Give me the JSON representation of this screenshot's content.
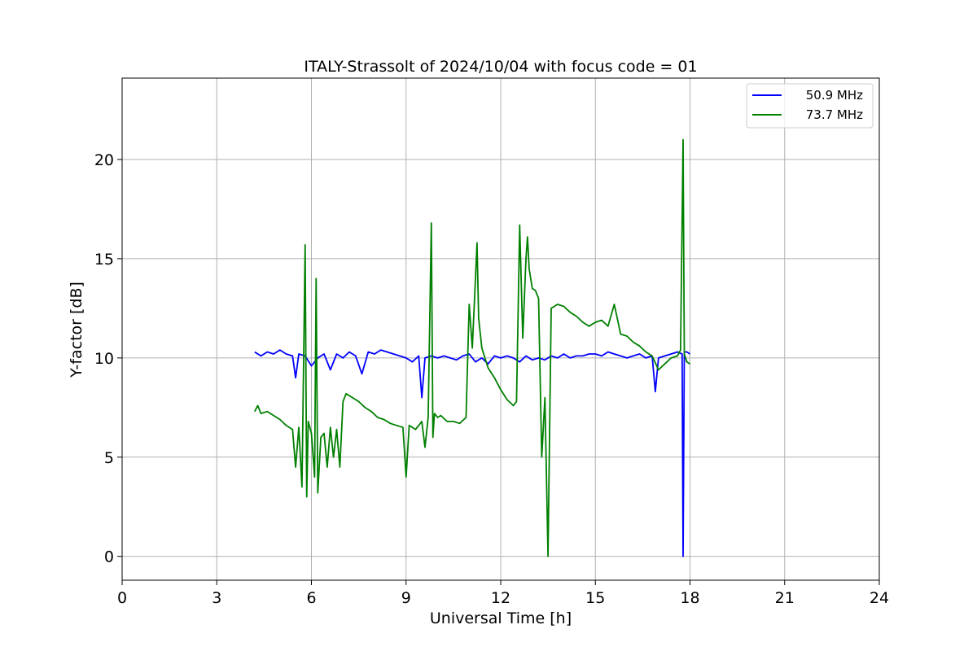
{
  "chart_data": {
    "type": "line",
    "title": "ITALY-Strassolt of 2024/10/04 with focus code = 01",
    "xlabel": "Universal Time [h]",
    "ylabel": "Y-factor [dB]",
    "xlim": [
      0,
      24
    ],
    "ylim": [
      -1.2,
      24.1
    ],
    "xticks": [
      0,
      3,
      6,
      9,
      12,
      15,
      18,
      21,
      24
    ],
    "yticks": [
      0,
      5,
      10,
      15,
      20
    ],
    "grid": true,
    "legend_position": "top-right",
    "colors": {
      "50.9 MHz": "#0000ff",
      "73.7 MHz": "#008000"
    },
    "series": [
      {
        "name": "50.9 MHz",
        "color": "#0000ff",
        "x": [
          4.2,
          4.4,
          4.6,
          4.8,
          5.0,
          5.2,
          5.4,
          5.5,
          5.6,
          5.8,
          6.0,
          6.2,
          6.4,
          6.6,
          6.8,
          7.0,
          7.2,
          7.4,
          7.6,
          7.8,
          8.0,
          8.2,
          8.4,
          8.6,
          8.8,
          9.0,
          9.2,
          9.4,
          9.5,
          9.6,
          9.8,
          10.0,
          10.2,
          10.4,
          10.6,
          10.8,
          11.0,
          11.2,
          11.4,
          11.6,
          11.8,
          12.0,
          12.2,
          12.4,
          12.6,
          12.8,
          13.0,
          13.2,
          13.4,
          13.6,
          13.8,
          14.0,
          14.2,
          14.4,
          14.6,
          14.8,
          15.0,
          15.2,
          15.4,
          15.6,
          15.8,
          16.0,
          16.2,
          16.4,
          16.6,
          16.8,
          16.9,
          17.0,
          17.2,
          17.4,
          17.6,
          17.75,
          17.78,
          17.82,
          17.9,
          18.0
        ],
        "y": [
          10.3,
          10.1,
          10.3,
          10.2,
          10.4,
          10.2,
          10.1,
          9.0,
          10.2,
          10.1,
          9.6,
          10.0,
          10.2,
          9.4,
          10.2,
          10.0,
          10.3,
          10.1,
          9.2,
          10.3,
          10.2,
          10.4,
          10.3,
          10.2,
          10.1,
          10.0,
          9.8,
          10.1,
          8.0,
          10.0,
          10.1,
          10.0,
          10.1,
          10.0,
          9.9,
          10.1,
          10.2,
          9.8,
          10.0,
          9.7,
          10.1,
          10.0,
          10.1,
          10.0,
          9.8,
          10.1,
          9.9,
          10.0,
          9.9,
          10.1,
          10.0,
          10.2,
          10.0,
          10.1,
          10.1,
          10.2,
          10.2,
          10.1,
          10.3,
          10.2,
          10.1,
          10.0,
          10.1,
          10.2,
          10.0,
          10.1,
          8.3,
          10.0,
          10.1,
          10.2,
          10.3,
          10.2,
          0.0,
          10.3,
          10.3,
          10.2
        ]
      },
      {
        "name": "73.7 MHz",
        "color": "#008000",
        "x": [
          4.2,
          4.3,
          4.4,
          4.6,
          4.8,
          5.0,
          5.2,
          5.4,
          5.5,
          5.6,
          5.7,
          5.8,
          5.85,
          5.9,
          6.0,
          6.1,
          6.15,
          6.2,
          6.3,
          6.4,
          6.5,
          6.6,
          6.7,
          6.8,
          6.9,
          7.0,
          7.1,
          7.3,
          7.5,
          7.7,
          7.9,
          8.1,
          8.3,
          8.5,
          8.7,
          8.9,
          9.0,
          9.1,
          9.3,
          9.5,
          9.6,
          9.7,
          9.8,
          9.85,
          9.9,
          10.0,
          10.1,
          10.3,
          10.5,
          10.7,
          10.9,
          11.0,
          11.1,
          11.2,
          11.25,
          11.3,
          11.4,
          11.6,
          11.8,
          12.0,
          12.2,
          12.4,
          12.5,
          12.6,
          12.7,
          12.8,
          12.85,
          12.9,
          13.0,
          13.1,
          13.2,
          13.3,
          13.4,
          13.5,
          13.6,
          13.8,
          14.0,
          14.2,
          14.4,
          14.6,
          14.8,
          15.0,
          15.2,
          15.4,
          15.6,
          15.8,
          16.0,
          16.2,
          16.4,
          16.6,
          16.8,
          17.0,
          17.2,
          17.4,
          17.6,
          17.7,
          17.78,
          17.82,
          17.9,
          18.0
        ],
        "y": [
          7.3,
          7.6,
          7.2,
          7.3,
          7.1,
          6.9,
          6.6,
          6.4,
          4.5,
          6.5,
          3.5,
          15.7,
          3.0,
          6.8,
          6.2,
          4.0,
          14.0,
          3.2,
          6.0,
          6.2,
          4.5,
          6.5,
          5.0,
          6.4,
          4.5,
          7.8,
          8.2,
          8.0,
          7.8,
          7.5,
          7.3,
          7.0,
          6.9,
          6.7,
          6.6,
          6.5,
          4.0,
          6.6,
          6.4,
          6.8,
          5.5,
          7.0,
          16.8,
          6.0,
          7.2,
          7.0,
          7.1,
          6.8,
          6.8,
          6.7,
          7.0,
          12.7,
          10.5,
          14.0,
          15.8,
          12.0,
          10.5,
          9.5,
          9.0,
          8.4,
          7.9,
          7.6,
          7.8,
          16.7,
          11.0,
          15.0,
          16.1,
          14.5,
          13.5,
          13.4,
          13.0,
          5.0,
          8.0,
          0.0,
          12.5,
          12.7,
          12.6,
          12.3,
          12.1,
          11.8,
          11.6,
          11.8,
          11.9,
          11.6,
          12.7,
          11.2,
          11.1,
          10.8,
          10.6,
          10.3,
          10.1,
          9.4,
          9.7,
          10.0,
          10.1,
          10.4,
          21.0,
          10.2,
          9.8,
          9.7
        ]
      }
    ]
  }
}
